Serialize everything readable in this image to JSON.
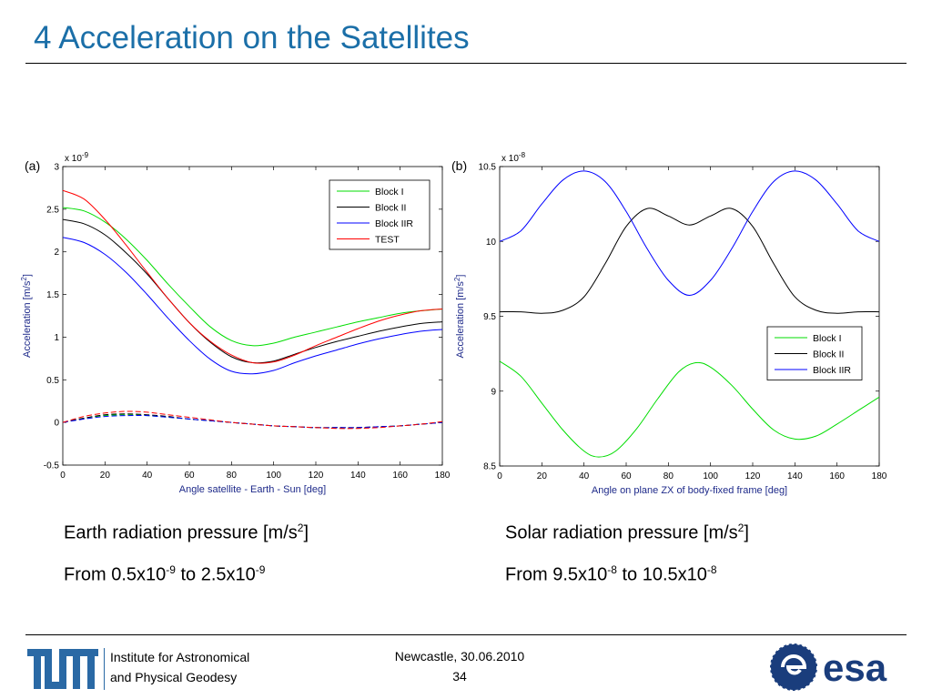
{
  "slide": {
    "title": "4 Acceleration on the Satellites",
    "caption_left": {
      "line1_text": "Earth radiation pressure [m/s",
      "line1_sup": "2",
      "line1_end": "]",
      "line2_a": "From 0.5x10",
      "line2_sup1": "-9",
      "line2_b": " to 2.5x10",
      "line2_sup2": "-9"
    },
    "caption_right": {
      "line1_text": "Solar radiation pressure [m/s",
      "line1_sup": "2",
      "line1_end": "]",
      "line2_a": "From 9.5x10",
      "line2_sup1": "-8",
      "line2_b": " to 10.5x10",
      "line2_sup2": "-8"
    }
  },
  "footer": {
    "institute_line1": "Institute for Astronomical",
    "institute_line2": "and Physical Geodesy",
    "location_date": "Newcastle, 30.06.2010",
    "page_number": "34",
    "esa_text": "esa"
  },
  "chart_data": [
    {
      "type": "line",
      "panel_label": "(a)",
      "multiplier": "x 10",
      "multiplier_exp": "-9",
      "xlabel": "Angle satellite - Earth - Sun [deg]",
      "ylabel": "Acceleration [m/s",
      "ylabel_sup": "2",
      "ylabel_end": "]",
      "xlim": [
        0,
        180
      ],
      "ylim": [
        -0.5,
        3
      ],
      "xticks": [
        0,
        20,
        40,
        60,
        80,
        100,
        120,
        140,
        160,
        180
      ],
      "yticks": [
        -0.5,
        0,
        0.5,
        1,
        1.5,
        2,
        2.5,
        3
      ],
      "ytick_labels": [
        "-0.5",
        "0",
        "0.5",
        "1",
        "1.5",
        "2",
        "2.5",
        "3"
      ],
      "legend_position": "top-right",
      "series": [
        {
          "name": "Block I",
          "color": "#00dd00",
          "style": "solid",
          "x": [
            0,
            10,
            20,
            30,
            40,
            50,
            60,
            70,
            80,
            90,
            100,
            110,
            120,
            130,
            140,
            150,
            160,
            170,
            180
          ],
          "y": [
            2.52,
            2.48,
            2.35,
            2.15,
            1.9,
            1.62,
            1.36,
            1.12,
            0.96,
            0.9,
            0.93,
            1.0,
            1.06,
            1.12,
            1.18,
            1.23,
            1.28,
            1.31,
            1.33
          ]
        },
        {
          "name": "Block II",
          "color": "#000000",
          "style": "solid",
          "x": [
            0,
            10,
            20,
            30,
            40,
            50,
            60,
            70,
            80,
            90,
            100,
            110,
            120,
            130,
            140,
            150,
            160,
            170,
            180
          ],
          "y": [
            2.38,
            2.33,
            2.2,
            1.99,
            1.74,
            1.45,
            1.17,
            0.94,
            0.77,
            0.7,
            0.72,
            0.8,
            0.88,
            0.95,
            1.01,
            1.07,
            1.12,
            1.16,
            1.18
          ]
        },
        {
          "name": "Block IIR",
          "color": "#0000ff",
          "style": "solid",
          "x": [
            0,
            10,
            20,
            30,
            40,
            50,
            60,
            70,
            80,
            90,
            100,
            110,
            120,
            130,
            140,
            150,
            160,
            170,
            180
          ],
          "y": [
            2.17,
            2.11,
            1.97,
            1.76,
            1.5,
            1.22,
            0.96,
            0.74,
            0.6,
            0.57,
            0.61,
            0.7,
            0.78,
            0.85,
            0.92,
            0.98,
            1.03,
            1.07,
            1.09
          ]
        },
        {
          "name": "TEST",
          "color": "#ff0000",
          "style": "solid",
          "x": [
            0,
            10,
            20,
            30,
            40,
            50,
            60,
            70,
            80,
            90,
            100,
            110,
            120,
            130,
            140,
            150,
            160,
            170,
            180
          ],
          "y": [
            2.72,
            2.62,
            2.38,
            2.08,
            1.76,
            1.45,
            1.17,
            0.95,
            0.79,
            0.7,
            0.71,
            0.79,
            0.9,
            1.0,
            1.1,
            1.19,
            1.26,
            1.31,
            1.33
          ]
        },
        {
          "name": "",
          "color": "#00dd00",
          "style": "dashed",
          "x": [
            0,
            10,
            20,
            30,
            40,
            50,
            60,
            70,
            80,
            90,
            100,
            110,
            120,
            130,
            140,
            150,
            160,
            170,
            180
          ],
          "y": [
            0.0,
            0.05,
            0.08,
            0.09,
            0.08,
            0.06,
            0.04,
            0.02,
            0.0,
            -0.02,
            -0.04,
            -0.05,
            -0.06,
            -0.06,
            -0.06,
            -0.05,
            -0.04,
            -0.02,
            0.0
          ]
        },
        {
          "name": "",
          "color": "#000000",
          "style": "dashed",
          "x": [
            0,
            10,
            20,
            30,
            40,
            50,
            60,
            70,
            80,
            90,
            100,
            110,
            120,
            130,
            140,
            150,
            160,
            170,
            180
          ],
          "y": [
            0.0,
            0.05,
            0.09,
            0.1,
            0.09,
            0.07,
            0.04,
            0.02,
            0.0,
            -0.02,
            -0.04,
            -0.05,
            -0.06,
            -0.06,
            -0.06,
            -0.05,
            -0.04,
            -0.02,
            0.0
          ]
        },
        {
          "name": "",
          "color": "#0000ff",
          "style": "dashed",
          "x": [
            0,
            10,
            20,
            30,
            40,
            50,
            60,
            70,
            80,
            90,
            100,
            110,
            120,
            130,
            140,
            150,
            160,
            170,
            180
          ],
          "y": [
            0.0,
            0.04,
            0.07,
            0.08,
            0.08,
            0.06,
            0.04,
            0.02,
            0.0,
            -0.02,
            -0.04,
            -0.05,
            -0.06,
            -0.06,
            -0.06,
            -0.05,
            -0.04,
            -0.02,
            0.0
          ]
        },
        {
          "name": "",
          "color": "#ff0000",
          "style": "dashed",
          "x": [
            0,
            10,
            20,
            30,
            40,
            50,
            60,
            70,
            80,
            90,
            100,
            110,
            120,
            130,
            140,
            150,
            160,
            170,
            180
          ],
          "y": [
            0.0,
            0.07,
            0.11,
            0.13,
            0.12,
            0.09,
            0.06,
            0.03,
            0.0,
            -0.02,
            -0.04,
            -0.05,
            -0.06,
            -0.07,
            -0.07,
            -0.06,
            -0.04,
            -0.02,
            0.01
          ]
        }
      ]
    },
    {
      "type": "line",
      "panel_label": "(b)",
      "multiplier": "x 10",
      "multiplier_exp": "-8",
      "xlabel": "Angle on plane ZX of body-fixed frame [deg]",
      "ylabel": "Acceleration [m/s",
      "ylabel_sup": "2",
      "ylabel_end": "]",
      "xlim": [
        0,
        180
      ],
      "ylim": [
        8.5,
        10.5
      ],
      "xticks": [
        0,
        20,
        40,
        60,
        80,
        100,
        120,
        140,
        160,
        180
      ],
      "yticks": [
        8.5,
        9,
        9.5,
        10,
        10.5
      ],
      "ytick_labels": [
        "8.5",
        "9",
        "9.5",
        "10",
        "10.5"
      ],
      "legend_position": "bottom-right",
      "series": [
        {
          "name": "Block I",
          "color": "#00dd00",
          "style": "solid",
          "x": [
            0,
            10,
            20,
            30,
            40,
            47,
            55,
            65,
            75,
            85,
            93,
            100,
            110,
            120,
            130,
            140,
            150,
            160,
            170,
            180
          ],
          "y": [
            9.2,
            9.1,
            8.92,
            8.74,
            8.6,
            8.56,
            8.6,
            8.75,
            8.95,
            9.13,
            9.19,
            9.16,
            9.04,
            8.88,
            8.74,
            8.68,
            8.7,
            8.78,
            8.87,
            8.96
          ]
        },
        {
          "name": "Block II",
          "color": "#000000",
          "style": "solid",
          "x": [
            0,
            10,
            20,
            30,
            40,
            50,
            60,
            70,
            80,
            90,
            100,
            110,
            120,
            130,
            140,
            150,
            160,
            170,
            180
          ],
          "y": [
            9.53,
            9.53,
            9.52,
            9.54,
            9.63,
            9.85,
            10.1,
            10.22,
            10.17,
            10.11,
            10.17,
            10.22,
            10.1,
            9.85,
            9.63,
            9.54,
            9.52,
            9.53,
            9.53
          ]
        },
        {
          "name": "Block IIR",
          "color": "#0000ff",
          "style": "solid",
          "x": [
            0,
            10,
            20,
            30,
            40,
            50,
            60,
            70,
            80,
            90,
            100,
            110,
            120,
            130,
            140,
            150,
            160,
            170,
            180
          ],
          "y": [
            10.0,
            10.07,
            10.25,
            10.41,
            10.47,
            10.4,
            10.2,
            9.95,
            9.74,
            9.64,
            9.74,
            9.95,
            10.2,
            10.4,
            10.47,
            10.41,
            10.25,
            10.07,
            10.0
          ]
        }
      ]
    }
  ]
}
